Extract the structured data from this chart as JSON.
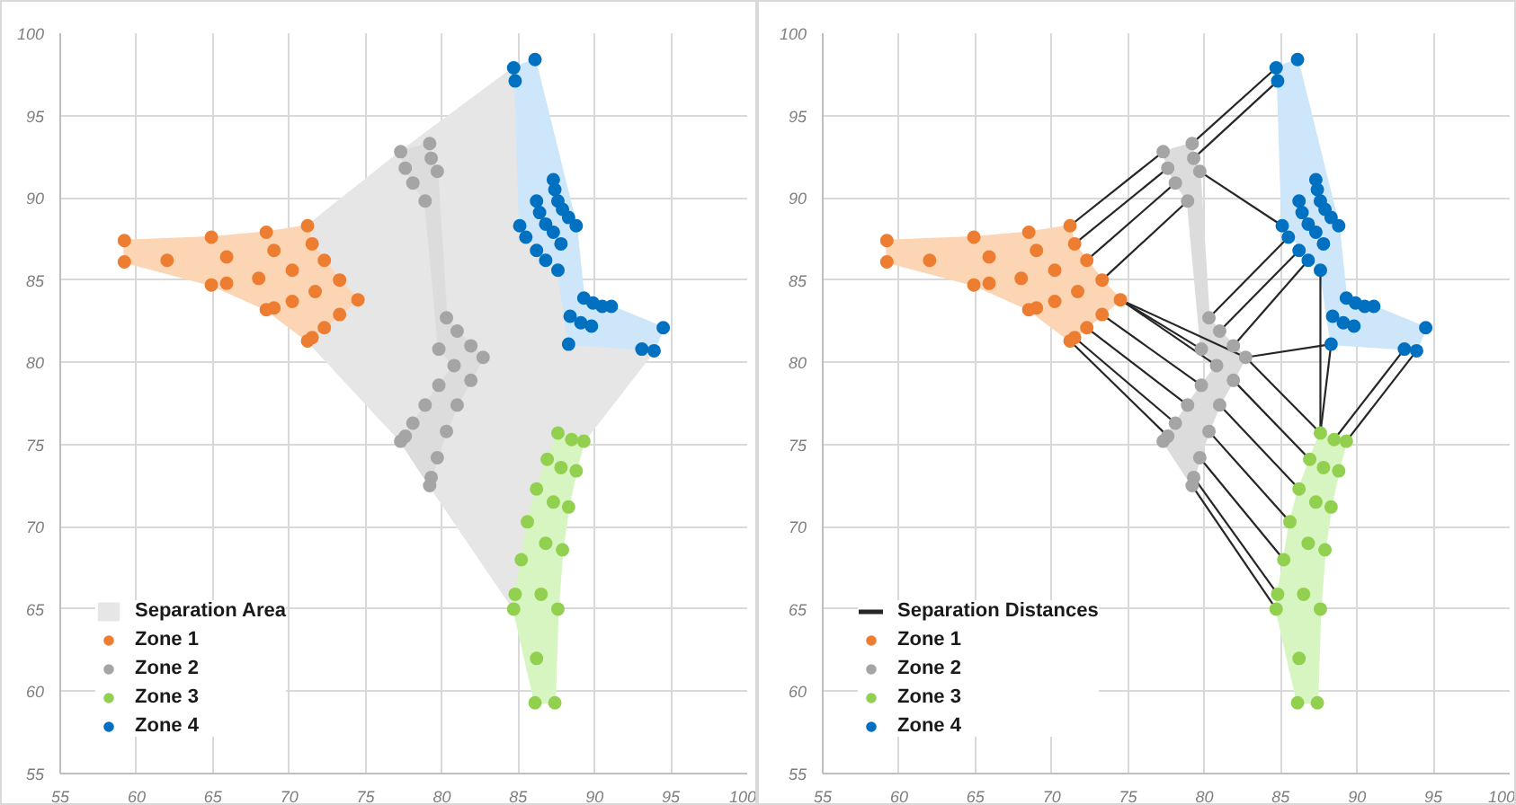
{
  "chart_data": [
    {
      "type": "scatter",
      "xlim": [
        55,
        100
      ],
      "ylim": [
        55,
        100
      ],
      "xticks": [
        55,
        60,
        65,
        70,
        75,
        80,
        85,
        90,
        95,
        100
      ],
      "yticks": [
        55,
        60,
        65,
        70,
        75,
        80,
        85,
        90,
        95,
        100
      ],
      "grid": true,
      "legend": "bottom left",
      "marker": "circle",
      "series": [
        {
          "type": "area",
          "marker": "none",
          "name": "Separation Area",
          "color": "#e6e6e6",
          "x": [
            84.7,
            77.3,
            71.2,
            71.5,
            72.3,
            73.3,
            74.5,
            73.3,
            72.3,
            71.5,
            71.2,
            77.3,
            79.2,
            84.7,
            85.2,
            85.6,
            86.2,
            86.9,
            87.6,
            88.5,
            89.3,
            93.9,
            93.1,
            88.3,
            87.6,
            85.1,
            84.8
          ],
          "values": [
            97.9,
            92.8,
            88.3,
            87.2,
            86.2,
            85.0,
            83.8,
            82.9,
            82.1,
            81.5,
            81.3,
            75.2,
            72.5,
            65.0,
            68.0,
            70.3,
            72.3,
            74.1,
            75.7,
            75.3,
            75.2,
            80.7,
            80.8,
            81.1,
            85.6,
            88.3,
            97.1
          ]
        },
        {
          "type": "area",
          "marker": "none",
          "color": "#fcd5b5",
          "x": [
            59.2,
            64.9,
            68.5,
            71.2,
            71.5,
            72.3,
            73.3,
            74.5,
            73.3,
            72.3,
            71.5,
            71.2,
            68.5,
            64.9,
            59.2
          ],
          "values": [
            87.4,
            87.6,
            87.9,
            88.3,
            87.2,
            86.2,
            85.0,
            83.8,
            82.9,
            82.1,
            81.5,
            81.3,
            83.2,
            84.7,
            86.1
          ]
        },
        {
          "type": "area",
          "marker": "none",
          "color": "#dcdcdc",
          "x": [
            77.3,
            79.2,
            79.3,
            79.7,
            80.3,
            81.0,
            82.7,
            81.9,
            81.0,
            80.3,
            79.7,
            79.2,
            77.3,
            78.1,
            78.9,
            79.8,
            80.8,
            79.8,
            78.9,
            78.1,
            77.6
          ],
          "values": [
            92.8,
            93.3,
            92.4,
            91.6,
            82.7,
            81.9,
            80.3,
            78.9,
            77.4,
            75.8,
            74.2,
            72.5,
            75.2,
            76.3,
            77.4,
            78.6,
            79.8,
            80.8,
            89.8,
            90.9,
            91.8
          ]
        },
        {
          "type": "area",
          "marker": "none",
          "color": "#d7f5c0",
          "x": [
            87.6,
            88.5,
            89.3,
            88.8,
            88.3,
            87.9,
            87.6,
            87.4,
            86.1,
            84.7,
            84.8,
            85.2,
            85.6,
            86.2,
            86.9
          ],
          "values": [
            75.7,
            75.3,
            75.2,
            73.4,
            71.2,
            68.6,
            65.0,
            59.3,
            59.3,
            65.0,
            65.9,
            68.0,
            70.3,
            72.3,
            74.1
          ]
        },
        {
          "type": "area",
          "marker": "none",
          "color": "#cde6fa",
          "x": [
            84.7,
            86.1,
            88.8,
            89.3,
            91.1,
            94.5,
            93.9,
            93.1,
            88.3,
            87.6,
            85.1,
            84.8
          ],
          "values": [
            97.9,
            98.4,
            88.3,
            83.9,
            83.4,
            82.1,
            80.7,
            80.8,
            81.1,
            85.6,
            88.3,
            97.1
          ]
        },
        {
          "name": "Zone 1",
          "color": "#ed7d31",
          "x": [
            59.2,
            59.2,
            62.0,
            64.9,
            65.9,
            64.9,
            65.9,
            68.5,
            69.0,
            68.0,
            70.2,
            71.2,
            71.5,
            72.3,
            73.3,
            74.5,
            71.7,
            70.2,
            69.0,
            68.5,
            73.3,
            72.3,
            71.5,
            71.2
          ],
          "values": [
            87.4,
            86.1,
            86.2,
            87.6,
            86.4,
            84.7,
            84.8,
            87.9,
            86.8,
            85.1,
            85.6,
            88.3,
            87.2,
            86.2,
            85.0,
            83.8,
            84.3,
            83.7,
            83.3,
            83.2,
            82.9,
            82.1,
            81.5,
            81.3
          ]
        },
        {
          "name": "Zone 2",
          "color": "#a5a5a5",
          "x": [
            77.3,
            79.2,
            77.6,
            79.3,
            78.1,
            79.7,
            78.9,
            80.3,
            81.0,
            79.8,
            81.9,
            80.8,
            82.7,
            81.9,
            79.8,
            78.9,
            81.0,
            78.1,
            80.3,
            77.6,
            77.3,
            79.7,
            79.3,
            79.2
          ],
          "values": [
            92.8,
            93.3,
            91.8,
            92.4,
            90.9,
            91.6,
            89.8,
            82.7,
            81.9,
            80.8,
            81.0,
            79.8,
            80.3,
            78.9,
            78.6,
            77.4,
            77.4,
            76.3,
            75.8,
            75.5,
            75.2,
            74.2,
            73.0,
            72.5
          ]
        },
        {
          "name": "Zone 3",
          "color": "#92d050",
          "x": [
            87.6,
            88.5,
            89.3,
            86.9,
            87.8,
            88.8,
            86.2,
            87.3,
            88.3,
            85.6,
            86.8,
            87.9,
            85.2,
            84.8,
            86.5,
            84.7,
            87.6,
            86.2,
            86.1,
            87.4
          ],
          "values": [
            75.7,
            75.3,
            75.2,
            74.1,
            73.6,
            73.4,
            72.3,
            71.5,
            71.2,
            70.3,
            69.0,
            68.6,
            68.0,
            65.9,
            65.9,
            65.0,
            65.0,
            62.0,
            59.3,
            59.3
          ]
        },
        {
          "name": "Zone 4",
          "color": "#0070c0",
          "x": [
            84.7,
            86.1,
            84.8,
            87.3,
            87.4,
            87.6,
            86.2,
            87.9,
            86.4,
            88.3,
            88.8,
            85.1,
            86.8,
            87.3,
            87.8,
            85.5,
            86.2,
            86.8,
            87.6,
            89.3,
            89.9,
            90.5,
            91.1,
            88.4,
            89.1,
            89.8,
            88.3,
            94.5,
            93.1,
            93.9
          ],
          "values": [
            97.9,
            98.4,
            97.1,
            91.1,
            90.5,
            89.8,
            89.8,
            89.3,
            89.1,
            88.8,
            88.3,
            88.3,
            88.4,
            87.9,
            87.2,
            87.6,
            86.8,
            86.2,
            85.6,
            83.9,
            83.6,
            83.4,
            83.4,
            82.8,
            82.4,
            82.2,
            81.1,
            82.1,
            80.8,
            80.7
          ]
        }
      ]
    },
    {
      "type": "scatter",
      "xlim": [
        55,
        100
      ],
      "ylim": [
        55,
        100
      ],
      "xticks": [
        55,
        60,
        65,
        70,
        75,
        80,
        85,
        90,
        95,
        100
      ],
      "yticks": [
        55,
        60,
        65,
        70,
        75,
        80,
        85,
        90,
        95,
        100
      ],
      "grid": true,
      "legend": "bottom left",
      "marker": "circle",
      "series": [
        {
          "type": "area",
          "marker": "none",
          "color": "#fcd5b5",
          "x": [
            59.2,
            64.9,
            68.5,
            71.2,
            71.5,
            72.3,
            73.3,
            74.5,
            73.3,
            72.3,
            71.5,
            71.2,
            68.5,
            64.9,
            59.2
          ],
          "values": [
            87.4,
            87.6,
            87.9,
            88.3,
            87.2,
            86.2,
            85.0,
            83.8,
            82.9,
            82.1,
            81.5,
            81.3,
            83.2,
            84.7,
            86.1
          ]
        },
        {
          "type": "area",
          "marker": "none",
          "color": "#dcdcdc",
          "x": [
            77.3,
            79.2,
            79.3,
            79.7,
            80.3,
            81.0,
            82.7,
            81.9,
            81.0,
            80.3,
            79.7,
            79.2,
            77.3,
            78.1,
            78.9,
            79.8,
            80.8,
            79.8,
            78.9,
            78.1,
            77.6
          ],
          "values": [
            92.8,
            93.3,
            92.4,
            91.6,
            82.7,
            81.9,
            80.3,
            78.9,
            77.4,
            75.8,
            74.2,
            72.5,
            75.2,
            76.3,
            77.4,
            78.6,
            79.8,
            80.8,
            89.8,
            90.9,
            91.8
          ]
        },
        {
          "type": "area",
          "marker": "none",
          "color": "#d7f5c0",
          "x": [
            87.6,
            88.5,
            89.3,
            88.8,
            88.3,
            87.9,
            87.6,
            87.4,
            86.1,
            84.7,
            84.8,
            85.2,
            85.6,
            86.2,
            86.9
          ],
          "values": [
            75.7,
            75.3,
            75.2,
            73.4,
            71.2,
            68.6,
            65.0,
            59.3,
            59.3,
            65.0,
            65.9,
            68.0,
            70.3,
            72.3,
            74.1
          ]
        },
        {
          "type": "area",
          "marker": "none",
          "color": "#cde6fa",
          "x": [
            84.7,
            86.1,
            88.8,
            89.3,
            91.1,
            94.5,
            93.9,
            93.1,
            88.3,
            87.6,
            85.1,
            84.8
          ],
          "values": [
            97.9,
            98.4,
            88.3,
            83.9,
            83.4,
            82.1,
            80.7,
            80.8,
            81.1,
            85.6,
            88.3,
            97.1
          ]
        },
        {
          "type": "line",
          "marker": "none",
          "name": "Separation Distances",
          "color": "#262626",
          "x": [
            79.2,
            84.7
          ],
          "values": [
            93.3,
            97.9
          ]
        },
        {
          "type": "line",
          "marker": "none",
          "color": "#262626",
          "x": [
            79.3,
            84.8
          ],
          "values": [
            92.4,
            97.1
          ]
        },
        {
          "type": "line",
          "marker": "none",
          "color": "#262626",
          "x": [
            71.2,
            77.3
          ],
          "values": [
            88.3,
            92.8
          ]
        },
        {
          "type": "line",
          "marker": "none",
          "color": "#262626",
          "x": [
            71.5,
            77.6
          ],
          "values": [
            87.2,
            91.8
          ]
        },
        {
          "type": "line",
          "marker": "none",
          "color": "#262626",
          "x": [
            72.3,
            78.1
          ],
          "values": [
            86.2,
            90.9
          ]
        },
        {
          "type": "line",
          "marker": "none",
          "color": "#262626",
          "x": [
            73.3,
            78.9
          ],
          "values": [
            85.0,
            89.8
          ]
        },
        {
          "type": "line",
          "marker": "none",
          "color": "#262626",
          "x": [
            79.7,
            85.1
          ],
          "values": [
            91.6,
            88.3
          ]
        },
        {
          "type": "line",
          "marker": "none",
          "color": "#262626",
          "x": [
            80.3,
            85.5
          ],
          "values": [
            82.7,
            87.6
          ]
        },
        {
          "type": "line",
          "marker": "none",
          "color": "#262626",
          "x": [
            81.0,
            86.2
          ],
          "values": [
            81.9,
            86.8
          ]
        },
        {
          "type": "line",
          "marker": "none",
          "color": "#262626",
          "x": [
            81.9,
            86.8
          ],
          "values": [
            81.0,
            86.2
          ]
        },
        {
          "type": "line",
          "marker": "none",
          "color": "#262626",
          "x": [
            82.7,
            88.3
          ],
          "values": [
            80.3,
            81.1
          ]
        },
        {
          "type": "line",
          "marker": "none",
          "color": "#262626",
          "x": [
            74.5,
            79.8
          ],
          "values": [
            83.8,
            80.8
          ]
        },
        {
          "type": "line",
          "marker": "none",
          "color": "#262626",
          "x": [
            74.5,
            80.8
          ],
          "values": [
            83.8,
            79.8
          ]
        },
        {
          "type": "line",
          "marker": "none",
          "color": "#262626",
          "x": [
            74.5,
            82.7
          ],
          "values": [
            83.8,
            80.3
          ]
        },
        {
          "type": "line",
          "marker": "none",
          "color": "#262626",
          "x": [
            73.3,
            79.8
          ],
          "values": [
            82.9,
            78.6
          ]
        },
        {
          "type": "line",
          "marker": "none",
          "color": "#262626",
          "x": [
            72.3,
            78.9
          ],
          "values": [
            82.1,
            77.4
          ]
        },
        {
          "type": "line",
          "marker": "none",
          "color": "#262626",
          "x": [
            71.5,
            78.1
          ],
          "values": [
            81.5,
            76.3
          ]
        },
        {
          "type": "line",
          "marker": "none",
          "color": "#262626",
          "x": [
            71.2,
            77.6
          ],
          "values": [
            81.3,
            75.5
          ]
        },
        {
          "type": "line",
          "marker": "none",
          "color": "#262626",
          "x": [
            81.0,
            86.2
          ],
          "values": [
            77.4,
            72.3
          ]
        },
        {
          "type": "line",
          "marker": "none",
          "color": "#262626",
          "x": [
            80.3,
            85.6
          ],
          "values": [
            75.8,
            70.3
          ]
        },
        {
          "type": "line",
          "marker": "none",
          "color": "#262626",
          "x": [
            79.7,
            85.2
          ],
          "values": [
            74.2,
            68.0
          ]
        },
        {
          "type": "line",
          "marker": "none",
          "color": "#262626",
          "x": [
            79.3,
            84.8
          ],
          "values": [
            73.0,
            65.9
          ]
        },
        {
          "type": "line",
          "marker": "none",
          "color": "#262626",
          "x": [
            79.2,
            84.7
          ],
          "values": [
            72.5,
            65.0
          ]
        },
        {
          "type": "line",
          "marker": "none",
          "color": "#262626",
          "x": [
            81.9,
            86.9
          ],
          "values": [
            78.9,
            74.1
          ]
        },
        {
          "type": "line",
          "marker": "none",
          "color": "#262626",
          "x": [
            82.7,
            87.6
          ],
          "values": [
            80.3,
            75.7
          ]
        },
        {
          "type": "line",
          "marker": "none",
          "color": "#262626",
          "x": [
            87.6,
            87.6
          ],
          "values": [
            85.6,
            75.7
          ]
        },
        {
          "type": "line",
          "marker": "none",
          "color": "#262626",
          "x": [
            88.3,
            87.6
          ],
          "values": [
            81.1,
            75.7
          ]
        },
        {
          "type": "line",
          "marker": "none",
          "color": "#262626",
          "x": [
            93.1,
            88.5
          ],
          "values": [
            80.8,
            75.3
          ]
        },
        {
          "type": "line",
          "marker": "none",
          "color": "#262626",
          "x": [
            93.9,
            89.3
          ],
          "values": [
            80.7,
            75.2
          ]
        },
        {
          "name": "Zone 1",
          "color": "#ed7d31",
          "x": [
            59.2,
            59.2,
            62.0,
            64.9,
            65.9,
            64.9,
            65.9,
            68.5,
            69.0,
            68.0,
            70.2,
            71.2,
            71.5,
            72.3,
            73.3,
            74.5,
            71.7,
            70.2,
            69.0,
            68.5,
            73.3,
            72.3,
            71.5,
            71.2
          ],
          "values": [
            87.4,
            86.1,
            86.2,
            87.6,
            86.4,
            84.7,
            84.8,
            87.9,
            86.8,
            85.1,
            85.6,
            88.3,
            87.2,
            86.2,
            85.0,
            83.8,
            84.3,
            83.7,
            83.3,
            83.2,
            82.9,
            82.1,
            81.5,
            81.3
          ]
        },
        {
          "name": "Zone 2",
          "color": "#a5a5a5",
          "x": [
            77.3,
            79.2,
            77.6,
            79.3,
            78.1,
            79.7,
            78.9,
            80.3,
            81.0,
            79.8,
            81.9,
            80.8,
            82.7,
            81.9,
            79.8,
            78.9,
            81.0,
            78.1,
            80.3,
            77.6,
            77.3,
            79.7,
            79.3,
            79.2
          ],
          "values": [
            92.8,
            93.3,
            91.8,
            92.4,
            90.9,
            91.6,
            89.8,
            82.7,
            81.9,
            80.8,
            81.0,
            79.8,
            80.3,
            78.9,
            78.6,
            77.4,
            77.4,
            76.3,
            75.8,
            75.5,
            75.2,
            74.2,
            73.0,
            72.5
          ]
        },
        {
          "name": "Zone 3",
          "color": "#92d050",
          "x": [
            87.6,
            88.5,
            89.3,
            86.9,
            87.8,
            88.8,
            86.2,
            87.3,
            88.3,
            85.6,
            86.8,
            87.9,
            85.2,
            84.8,
            86.5,
            84.7,
            87.6,
            86.2,
            86.1,
            87.4
          ],
          "values": [
            75.7,
            75.3,
            75.2,
            74.1,
            73.6,
            73.4,
            72.3,
            71.5,
            71.2,
            70.3,
            69.0,
            68.6,
            68.0,
            65.9,
            65.9,
            65.0,
            65.0,
            62.0,
            59.3,
            59.3
          ]
        },
        {
          "name": "Zone 4",
          "color": "#0070c0",
          "x": [
            84.7,
            86.1,
            84.8,
            87.3,
            87.4,
            87.6,
            86.2,
            87.9,
            86.4,
            88.3,
            88.8,
            85.1,
            86.8,
            87.3,
            87.8,
            85.5,
            86.2,
            86.8,
            87.6,
            89.3,
            89.9,
            90.5,
            91.1,
            88.4,
            89.1,
            89.8,
            88.3,
            94.5,
            93.1,
            93.9
          ],
          "values": [
            97.9,
            98.4,
            97.1,
            91.1,
            90.5,
            89.8,
            89.8,
            89.3,
            89.1,
            88.8,
            88.3,
            88.3,
            88.4,
            87.9,
            87.2,
            87.6,
            86.8,
            86.2,
            85.6,
            83.9,
            83.6,
            83.4,
            83.4,
            82.8,
            82.4,
            82.2,
            81.1,
            82.1,
            80.8,
            80.7
          ]
        }
      ]
    }
  ]
}
